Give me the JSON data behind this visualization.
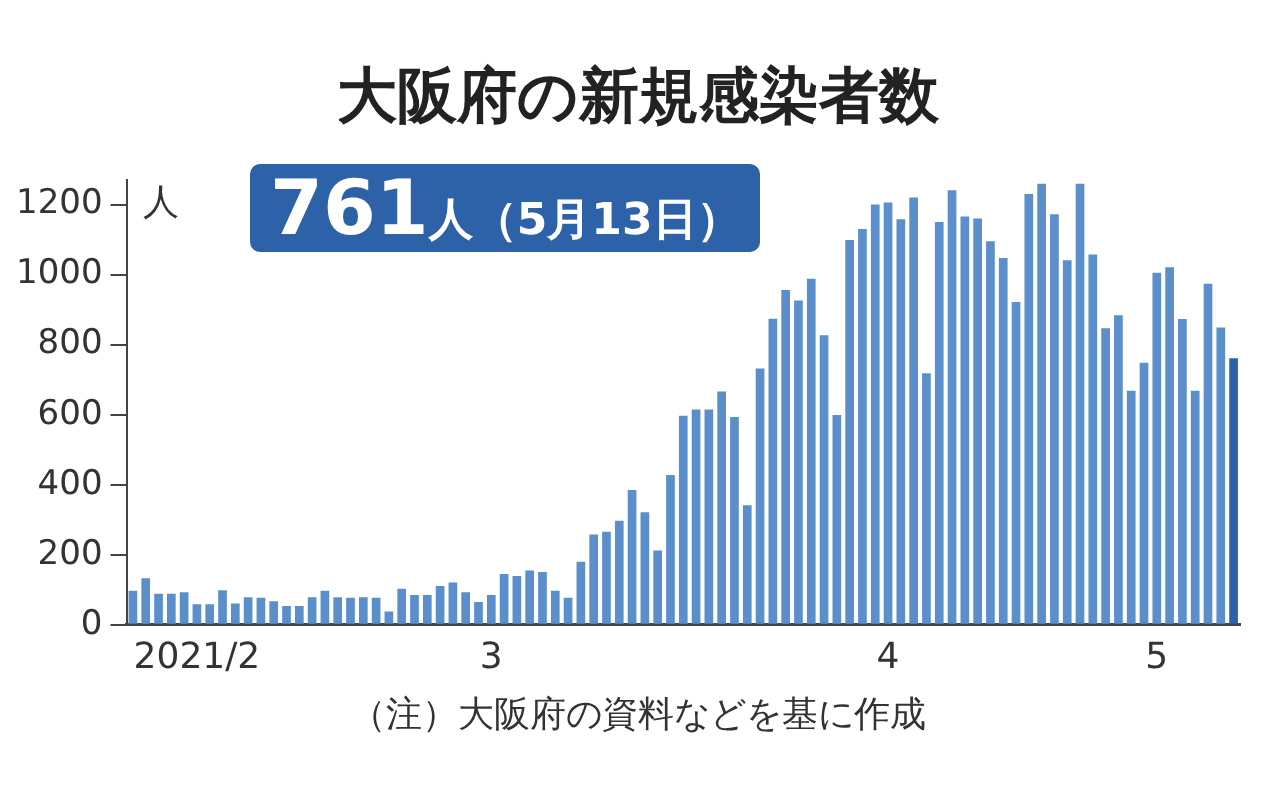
{
  "chart_data": {
    "type": "bar",
    "title": "大阪府の新規感染者数",
    "ylabel": "人",
    "annotations": [
      "761人（5月13日）",
      "（注）大阪府の資料などを基に作成"
    ],
    "categories": [
      null,
      null,
      null,
      null,
      null,
      "2021/2",
      null,
      null,
      null,
      null,
      null,
      null,
      null,
      null,
      null,
      null,
      null,
      null,
      null,
      null,
      null,
      null,
      null,
      null,
      null,
      null,
      null,
      null,
      "3",
      null,
      null,
      null,
      null,
      null,
      null,
      null,
      null,
      null,
      null,
      null,
      null,
      null,
      null,
      null,
      null,
      null,
      null,
      null,
      null,
      null,
      null,
      null,
      null,
      null,
      null,
      null,
      null,
      null,
      null,
      "4",
      null,
      null,
      null,
      null,
      null,
      null,
      null,
      null,
      null,
      null,
      null,
      null,
      null,
      null,
      null,
      null,
      null,
      null,
      null,
      null,
      "5",
      null,
      null,
      null,
      null,
      null,
      null
    ],
    "values": [
      97,
      133,
      89,
      89,
      93,
      59,
      59,
      99,
      61,
      79,
      77,
      67,
      54,
      54,
      79,
      97,
      79,
      77,
      79,
      77,
      38,
      103,
      85,
      85,
      111,
      121,
      93,
      65,
      85,
      145,
      139,
      155,
      151,
      97,
      77,
      180,
      258,
      266,
      297,
      385,
      321,
      212,
      428,
      597,
      615,
      615,
      666,
      593,
      341,
      732,
      874,
      956,
      926,
      988,
      827,
      599,
      1099,
      1130,
      1200,
      1206,
      1158,
      1220,
      718,
      1150,
      1241,
      1166,
      1160,
      1095,
      1047,
      922,
      1230,
      1259,
      1172,
      1041,
      1259,
      1057,
      847,
      884,
      668,
      748,
      1005,
      1021,
      873,
      668,
      974,
      849,
      761
    ],
    "colors": [
      "#5b8fcb",
      "#5b8fcb",
      "#5b8fcb",
      "#5b8fcb",
      "#5b8fcb",
      "#5b8fcb",
      "#5b8fcb",
      "#5b8fcb",
      "#5b8fcb",
      "#5b8fcb",
      "#5b8fcb",
      "#5b8fcb",
      "#5b8fcb",
      "#5b8fcb",
      "#5b8fcb",
      "#5b8fcb",
      "#5b8fcb",
      "#5b8fcb",
      "#5b8fcb",
      "#5b8fcb",
      "#5b8fcb",
      "#5b8fcb",
      "#5b8fcb",
      "#5b8fcb",
      "#5b8fcb",
      "#5b8fcb",
      "#5b8fcb",
      "#5b8fcb",
      "#5b8fcb",
      "#5b8fcb",
      "#5b8fcb",
      "#5b8fcb",
      "#5b8fcb",
      "#5b8fcb",
      "#5b8fcb",
      "#5b8fcb",
      "#5b8fcb",
      "#5b8fcb",
      "#5b8fcb",
      "#5b8fcb",
      "#5b8fcb",
      "#5b8fcb",
      "#5b8fcb",
      "#5b8fcb",
      "#5b8fcb",
      "#5b8fcb",
      "#5b8fcb",
      "#5b8fcb",
      "#5b8fcb",
      "#5b8fcb",
      "#5b8fcb",
      "#5b8fcb",
      "#5b8fcb",
      "#5b8fcb",
      "#5b8fcb",
      "#5b8fcb",
      "#5b8fcb",
      "#5b8fcb",
      "#5b8fcb",
      "#5b8fcb",
      "#5b8fcb",
      "#5b8fcb",
      "#5b8fcb",
      "#5b8fcb",
      "#5b8fcb",
      "#5b8fcb",
      "#5b8fcb",
      "#5b8fcb",
      "#5b8fcb",
      "#5b8fcb",
      "#5b8fcb",
      "#5b8fcb",
      "#5b8fcb",
      "#5b8fcb",
      "#5b8fcb",
      "#5b8fcb",
      "#5b8fcb",
      "#5b8fcb",
      "#5b8fcb",
      "#5b8fcb",
      "#5b8fcb",
      "#5b8fcb",
      "#5b8fcb",
      "#5b8fcb",
      "#5b8fcb",
      "#5b8fcb",
      "#2e62a8"
    ],
    "ylim": [
      0,
      1270
    ],
    "yticks": [
      0,
      200,
      400,
      600,
      800,
      1000,
      1200
    ],
    "grid": false,
    "legend": false
  }
}
